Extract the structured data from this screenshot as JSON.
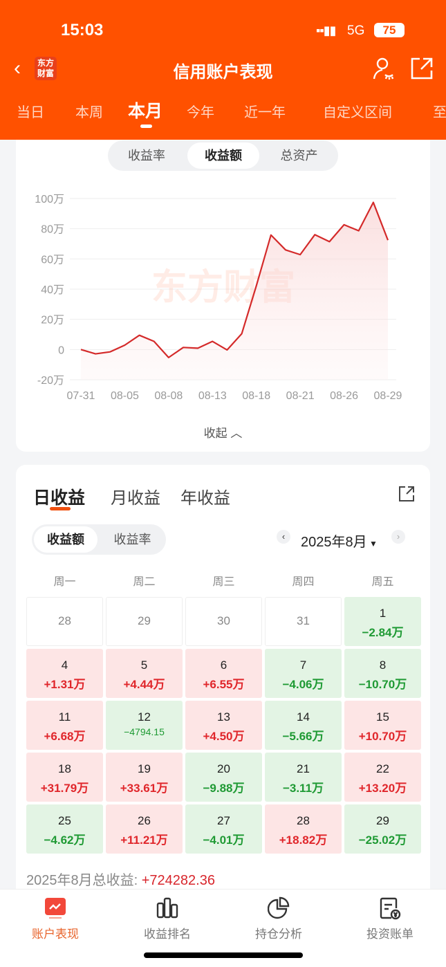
{
  "status": {
    "time": "15:03",
    "network": "5G",
    "battery": "75"
  },
  "header": {
    "title": "信用账户表现",
    "logo": "东方财富",
    "tabs": [
      "当日",
      "本周",
      "本月",
      "今年",
      "近一年",
      "自定义区间",
      "至"
    ],
    "active_tab": "本月"
  },
  "chart_card": {
    "toggle": [
      "收益率",
      "收益额",
      "总资产"
    ],
    "active": "收益额",
    "collapse": "收起"
  },
  "chart_data": {
    "type": "area",
    "watermark": "东方财富",
    "color": "#d42a2a",
    "x": [
      "07-31",
      "08-01",
      "08-04",
      "08-05",
      "08-06",
      "08-07",
      "08-08",
      "08-11",
      "08-12",
      "08-13",
      "08-14",
      "08-15",
      "08-18",
      "08-19",
      "08-20",
      "08-21",
      "08-22",
      "08-25",
      "08-26",
      "08-27",
      "08-28",
      "08-29"
    ],
    "values": [
      0,
      -2.84,
      -1.53,
      2.91,
      9.46,
      5.4,
      -5.3,
      1.38,
      0.9,
      5.4,
      -0.26,
      10.44,
      42.23,
      75.84,
      65.96,
      62.85,
      76.05,
      71.43,
      82.64,
      78.63,
      97.45,
      72.43
    ],
    "unit": "万",
    "x_tick_labels": [
      "07-31",
      "08-05",
      "08-08",
      "08-13",
      "08-18",
      "08-21",
      "08-26",
      "08-29"
    ],
    "y_ticks": [
      "100万",
      "80万",
      "60万",
      "40万",
      "20万",
      "0",
      "-20万"
    ],
    "ylim": [
      -20,
      100
    ],
    "grid": true
  },
  "profit": {
    "tabs": [
      "日收益",
      "月收益",
      "年收益"
    ],
    "active_tab": "日收益",
    "toggle": [
      "收益额",
      "收益率"
    ],
    "month": "2025年8月",
    "weekdays": [
      "周一",
      "周二",
      "周三",
      "周四",
      "周五"
    ],
    "days": [
      {
        "d": "28",
        "v": ""
      },
      {
        "d": "29",
        "v": ""
      },
      {
        "d": "30",
        "v": ""
      },
      {
        "d": "31",
        "v": ""
      },
      {
        "d": "1",
        "v": "−2.84万"
      },
      {
        "d": "4",
        "v": "+1.31万"
      },
      {
        "d": "5",
        "v": "+4.44万"
      },
      {
        "d": "6",
        "v": "+6.55万"
      },
      {
        "d": "7",
        "v": "−4.06万"
      },
      {
        "d": "8",
        "v": "−10.70万"
      },
      {
        "d": "11",
        "v": "+6.68万"
      },
      {
        "d": "12",
        "v": "−4794.15"
      },
      {
        "d": "13",
        "v": "+4.50万"
      },
      {
        "d": "14",
        "v": "−5.66万"
      },
      {
        "d": "15",
        "v": "+10.70万"
      },
      {
        "d": "18",
        "v": "+31.79万"
      },
      {
        "d": "19",
        "v": "+33.61万"
      },
      {
        "d": "20",
        "v": "−9.88万"
      },
      {
        "d": "21",
        "v": "−3.11万"
      },
      {
        "d": "22",
        "v": "+13.20万"
      },
      {
        "d": "25",
        "v": "−4.62万"
      },
      {
        "d": "26",
        "v": "+11.21万"
      },
      {
        "d": "27",
        "v": "−4.01万"
      },
      {
        "d": "28",
        "v": "+18.82万"
      },
      {
        "d": "29",
        "v": "−25.02万"
      }
    ],
    "total_label": "2025年8月总收益: ",
    "total_value": "+724282.36"
  },
  "bottom_nav": [
    {
      "label": "账户表现",
      "icon": "trend-chart-icon",
      "active": true
    },
    {
      "label": "收益排名",
      "icon": "bar-chart-icon"
    },
    {
      "label": "持仓分析",
      "icon": "pie-chart-icon"
    },
    {
      "label": "投资账单",
      "icon": "bill-icon"
    }
  ]
}
